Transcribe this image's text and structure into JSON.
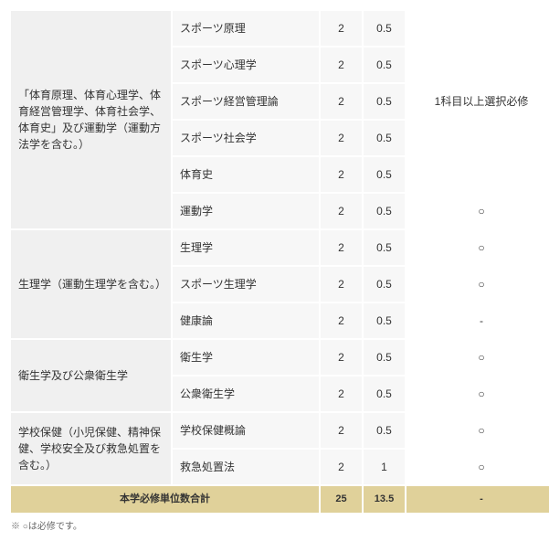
{
  "categories": [
    {
      "label": "「体育原理、体育心理学、体育経営管理学、体育社会学、体育史」及び運動学（運動方法学を含む。）",
      "note_span": 5,
      "note": "1科目以上選択必修",
      "rows": [
        {
          "subject": "スポーツ原理",
          "c1": "2",
          "c2": "0.5",
          "mark": null
        },
        {
          "subject": "スポーツ心理学",
          "c1": "2",
          "c2": "0.5",
          "mark": null
        },
        {
          "subject": "スポーツ経営管理論",
          "c1": "2",
          "c2": "0.5",
          "mark": null
        },
        {
          "subject": "スポーツ社会学",
          "c1": "2",
          "c2": "0.5",
          "mark": null
        },
        {
          "subject": "体育史",
          "c1": "2",
          "c2": "0.5",
          "mark": null
        },
        {
          "subject": "運動学",
          "c1": "2",
          "c2": "0.5",
          "mark": "○"
        }
      ]
    },
    {
      "label": "生理学（運動生理学を含む。）",
      "rows": [
        {
          "subject": "生理学",
          "c1": "2",
          "c2": "0.5",
          "mark": "○"
        },
        {
          "subject": "スポーツ生理学",
          "c1": "2",
          "c2": "0.5",
          "mark": "○"
        },
        {
          "subject": "健康論",
          "c1": "2",
          "c2": "0.5",
          "mark": "-"
        }
      ]
    },
    {
      "label": "衛生学及び公衆衛生学",
      "rows": [
        {
          "subject": "衛生学",
          "c1": "2",
          "c2": "0.5",
          "mark": "○"
        },
        {
          "subject": "公衆衛生学",
          "c1": "2",
          "c2": "0.5",
          "mark": "○"
        }
      ]
    },
    {
      "label": "学校保健（小児保健、精神保健、学校安全及び救急処置を含む。）",
      "rows": [
        {
          "subject": "学校保健概論",
          "c1": "2",
          "c2": "0.5",
          "mark": "○"
        },
        {
          "subject": "救急処置法",
          "c1": "2",
          "c2": "1",
          "mark": "○"
        }
      ]
    }
  ],
  "total": {
    "label": "本学必修単位数合計",
    "c1": "25",
    "c2": "13.5",
    "mark": "-"
  },
  "footnote": "※ ○は必修です。"
}
